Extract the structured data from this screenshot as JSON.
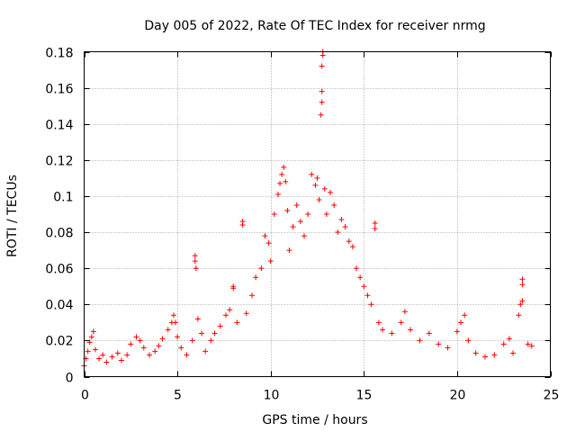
{
  "chart_data": {
    "type": "scatter",
    "title": "Day 005 of 2022, Rate Of TEC Index for receiver nrmg",
    "xlabel": "GPS time / hours",
    "ylabel": "ROTI / TECUs",
    "xlim": [
      0,
      25
    ],
    "ylim": [
      0,
      0.18
    ],
    "xticks": [
      0,
      5,
      10,
      15,
      20,
      25
    ],
    "xtick_labels": [
      "0",
      "5",
      "10",
      "15",
      "20",
      "25"
    ],
    "yticks": [
      0,
      0.02,
      0.04,
      0.06,
      0.08,
      0.1,
      0.12,
      0.14,
      0.16,
      0.18
    ],
    "ytick_labels": [
      "0",
      "0.02",
      "0.04",
      "0.06",
      "0.08",
      "0.1",
      "0.12",
      "0.14",
      "0.16",
      "0.18"
    ],
    "grid": true,
    "marker": "plus",
    "color": "#ff0000",
    "series": [
      {
        "name": "ROTI",
        "points": [
          [
            0.0,
            0.006
          ],
          [
            0.1,
            0.01
          ],
          [
            0.2,
            0.014
          ],
          [
            0.3,
            0.019
          ],
          [
            0.4,
            0.022
          ],
          [
            0.5,
            0.025
          ],
          [
            0.6,
            0.015
          ],
          [
            0.8,
            0.01
          ],
          [
            1.0,
            0.012
          ],
          [
            1.2,
            0.008
          ],
          [
            1.5,
            0.011
          ],
          [
            1.8,
            0.013
          ],
          [
            2.0,
            0.009
          ],
          [
            2.3,
            0.012
          ],
          [
            2.5,
            0.018
          ],
          [
            2.8,
            0.022
          ],
          [
            3.0,
            0.02
          ],
          [
            3.2,
            0.016
          ],
          [
            3.5,
            0.012
          ],
          [
            3.8,
            0.014
          ],
          [
            4.0,
            0.017
          ],
          [
            4.2,
            0.021
          ],
          [
            4.5,
            0.026
          ],
          [
            4.7,
            0.03
          ],
          [
            4.8,
            0.034
          ],
          [
            4.9,
            0.03
          ],
          [
            5.0,
            0.022
          ],
          [
            5.2,
            0.016
          ],
          [
            5.5,
            0.012
          ],
          [
            5.8,
            0.02
          ],
          [
            5.95,
            0.067
          ],
          [
            5.95,
            0.064
          ],
          [
            6.0,
            0.06
          ],
          [
            6.1,
            0.032
          ],
          [
            6.3,
            0.024
          ],
          [
            6.5,
            0.014
          ],
          [
            6.8,
            0.02
          ],
          [
            7.0,
            0.024
          ],
          [
            7.3,
            0.028
          ],
          [
            7.6,
            0.034
          ],
          [
            7.8,
            0.037
          ],
          [
            8.0,
            0.05
          ],
          [
            8.0,
            0.049
          ],
          [
            8.2,
            0.03
          ],
          [
            8.5,
            0.086
          ],
          [
            8.5,
            0.084
          ],
          [
            8.7,
            0.035
          ],
          [
            9.0,
            0.045
          ],
          [
            9.2,
            0.055
          ],
          [
            9.5,
            0.06
          ],
          [
            9.7,
            0.078
          ],
          [
            9.9,
            0.074
          ],
          [
            10.0,
            0.064
          ],
          [
            10.2,
            0.09
          ],
          [
            10.4,
            0.101
          ],
          [
            10.5,
            0.107
          ],
          [
            10.6,
            0.112
          ],
          [
            10.7,
            0.116
          ],
          [
            10.8,
            0.108
          ],
          [
            10.9,
            0.092
          ],
          [
            11.0,
            0.07
          ],
          [
            11.2,
            0.083
          ],
          [
            11.4,
            0.095
          ],
          [
            11.6,
            0.086
          ],
          [
            11.8,
            0.078
          ],
          [
            12.0,
            0.09
          ],
          [
            12.2,
            0.112
          ],
          [
            12.4,
            0.106
          ],
          [
            12.5,
            0.11
          ],
          [
            12.6,
            0.098
          ],
          [
            12.7,
            0.145
          ],
          [
            12.75,
            0.152
          ],
          [
            12.75,
            0.158
          ],
          [
            12.75,
            0.172
          ],
          [
            12.8,
            0.178
          ],
          [
            12.8,
            0.18
          ],
          [
            12.9,
            0.104
          ],
          [
            13.0,
            0.09
          ],
          [
            13.2,
            0.102
          ],
          [
            13.4,
            0.095
          ],
          [
            13.6,
            0.08
          ],
          [
            13.8,
            0.087
          ],
          [
            14.0,
            0.083
          ],
          [
            14.2,
            0.075
          ],
          [
            14.4,
            0.072
          ],
          [
            14.6,
            0.06
          ],
          [
            14.8,
            0.055
          ],
          [
            15.0,
            0.05
          ],
          [
            15.2,
            0.045
          ],
          [
            15.4,
            0.04
          ],
          [
            15.6,
            0.085
          ],
          [
            15.6,
            0.082
          ],
          [
            15.8,
            0.03
          ],
          [
            16.0,
            0.026
          ],
          [
            16.5,
            0.024
          ],
          [
            17.0,
            0.03
          ],
          [
            17.2,
            0.036
          ],
          [
            17.5,
            0.026
          ],
          [
            18.0,
            0.02
          ],
          [
            18.5,
            0.024
          ],
          [
            19.0,
            0.018
          ],
          [
            19.5,
            0.016
          ],
          [
            20.0,
            0.025
          ],
          [
            20.2,
            0.03
          ],
          [
            20.4,
            0.034
          ],
          [
            20.6,
            0.02
          ],
          [
            21.0,
            0.013
          ],
          [
            21.5,
            0.011
          ],
          [
            22.0,
            0.012
          ],
          [
            22.5,
            0.018
          ],
          [
            22.8,
            0.021
          ],
          [
            23.0,
            0.013
          ],
          [
            23.3,
            0.034
          ],
          [
            23.4,
            0.04
          ],
          [
            23.5,
            0.042
          ],
          [
            23.5,
            0.054
          ],
          [
            23.5,
            0.051
          ],
          [
            23.8,
            0.018
          ],
          [
            24.0,
            0.017
          ]
        ]
      }
    ]
  }
}
